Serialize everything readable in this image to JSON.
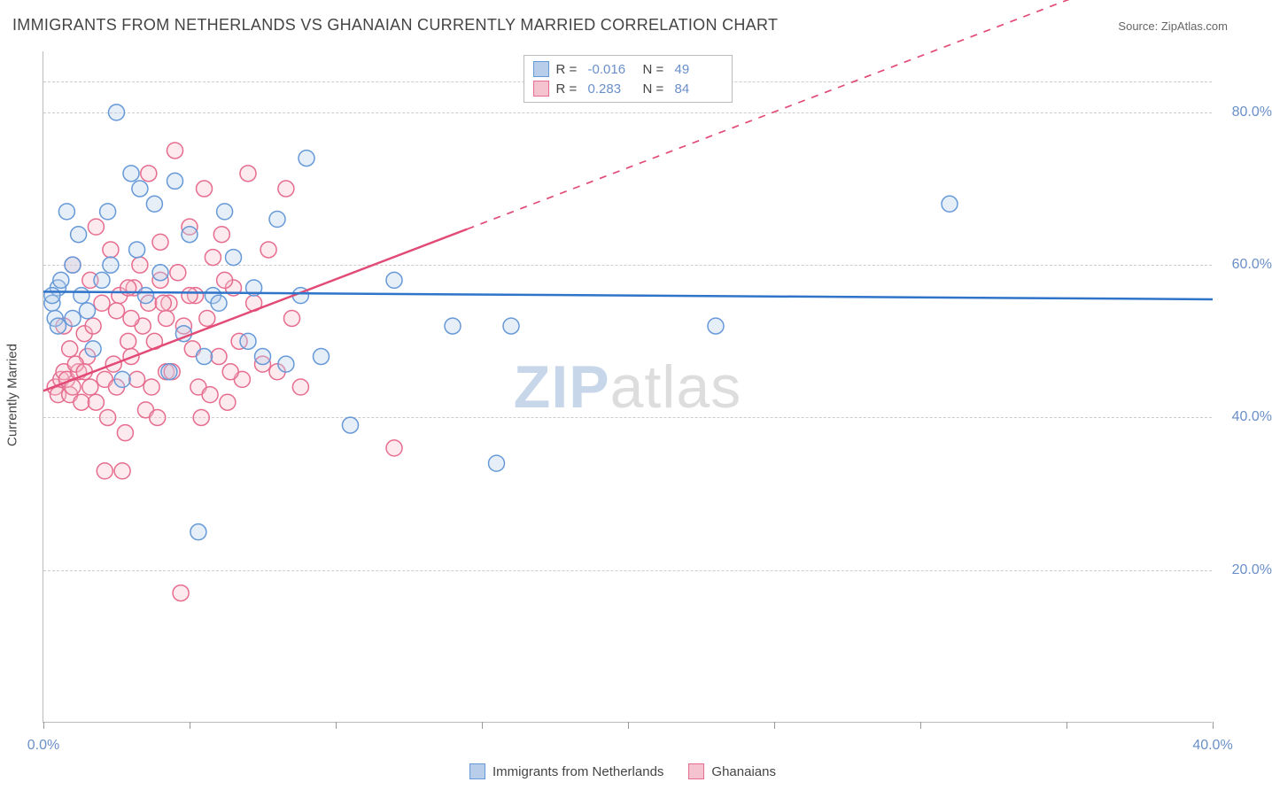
{
  "title": "IMMIGRANTS FROM NETHERLANDS VS GHANAIAN CURRENTLY MARRIED CORRELATION CHART",
  "source_label": "Source:",
  "source_value": "ZipAtlas.com",
  "yaxis_label": "Currently Married",
  "watermark_zip": "ZIP",
  "watermark_atlas": "atlas",
  "chart": {
    "type": "scatter",
    "background_color": "#ffffff",
    "grid_color": "#cccccc",
    "axis_color": "#bbbbbb",
    "tick_label_color": "#6a8fc9",
    "xlim": [
      0,
      40
    ],
    "ylim": [
      0,
      88
    ],
    "ytick_values": [
      20,
      40,
      60,
      80
    ],
    "ytick_labels": [
      "20.0%",
      "40.0%",
      "60.0%",
      "80.0%"
    ],
    "xtick_values": [
      0,
      5,
      10,
      15,
      20,
      25,
      30,
      35,
      40
    ],
    "xtick_labels_shown": {
      "0": "0.0%",
      "40": "40.0%"
    },
    "marker_radius": 9,
    "marker_stroke_width": 1.5,
    "marker_fill_opacity": 0.35,
    "series_a": {
      "name": "Immigrants from Netherlands",
      "color_fill": "#b8cde9",
      "color_stroke": "#6699d8",
      "R_label": "R =",
      "R_value": "-0.016",
      "N_label": "N =",
      "N_value": "49",
      "regression": {
        "x1": 0,
        "y1": 56.5,
        "x2": 40,
        "y2": 55.5,
        "solid_until_x": 40,
        "line_color": "#2f74c9",
        "line_width": 2.5
      },
      "points": [
        [
          0.3,
          55
        ],
        [
          0.5,
          57
        ],
        [
          0.4,
          53
        ],
        [
          0.6,
          58
        ],
        [
          0.8,
          67
        ],
        [
          0.5,
          52
        ],
        [
          1.0,
          60
        ],
        [
          1.2,
          64
        ],
        [
          1.5,
          54
        ],
        [
          1.7,
          49
        ],
        [
          2.0,
          58
        ],
        [
          2.2,
          67
        ],
        [
          2.5,
          80
        ],
        [
          2.7,
          45
        ],
        [
          3.0,
          72
        ],
        [
          3.2,
          62
        ],
        [
          3.5,
          56
        ],
        [
          3.8,
          68
        ],
        [
          4.0,
          59
        ],
        [
          4.3,
          46
        ],
        [
          4.5,
          71
        ],
        [
          5.0,
          64
        ],
        [
          5.3,
          25
        ],
        [
          5.5,
          48
        ],
        [
          5.8,
          56
        ],
        [
          6.2,
          67
        ],
        [
          6.5,
          61
        ],
        [
          7.0,
          50
        ],
        [
          7.2,
          57
        ],
        [
          7.5,
          48
        ],
        [
          8.0,
          66
        ],
        [
          8.3,
          47
        ],
        [
          8.8,
          56
        ],
        [
          9.0,
          74
        ],
        [
          9.5,
          48
        ],
        [
          10.5,
          39
        ],
        [
          12.0,
          58
        ],
        [
          14.0,
          52
        ],
        [
          15.5,
          34
        ],
        [
          16.0,
          52
        ],
        [
          23.0,
          52
        ],
        [
          31.0,
          68
        ],
        [
          1.0,
          53
        ],
        [
          1.3,
          56
        ],
        [
          2.3,
          60
        ],
        [
          3.3,
          70
        ],
        [
          4.8,
          51
        ],
        [
          6.0,
          55
        ],
        [
          0.3,
          56
        ]
      ]
    },
    "series_b": {
      "name": "Ghanaians",
      "color_fill": "#f5c3cf",
      "color_stroke": "#e66d8f",
      "R_label": "R =",
      "R_value": "0.283",
      "N_label": "N =",
      "N_value": "84",
      "regression": {
        "x1": 0,
        "y1": 43.5,
        "x2": 40,
        "y2": 102,
        "solid_until_x": 14.5,
        "line_color": "#e14b76",
        "line_width": 2.5
      },
      "points": [
        [
          0.4,
          44
        ],
        [
          0.6,
          45
        ],
        [
          0.5,
          43
        ],
        [
          0.7,
          46
        ],
        [
          0.8,
          45
        ],
        [
          0.9,
          43
        ],
        [
          1.0,
          44
        ],
        [
          1.0,
          60
        ],
        [
          1.2,
          46
        ],
        [
          1.3,
          42
        ],
        [
          1.4,
          51
        ],
        [
          1.5,
          48
        ],
        [
          1.6,
          44
        ],
        [
          1.7,
          52
        ],
        [
          1.8,
          42
        ],
        [
          2.0,
          55
        ],
        [
          2.1,
          45
        ],
        [
          2.2,
          40
        ],
        [
          2.3,
          62
        ],
        [
          2.4,
          47
        ],
        [
          2.5,
          44
        ],
        [
          2.6,
          56
        ],
        [
          2.7,
          33
        ],
        [
          2.8,
          38
        ],
        [
          2.9,
          50
        ],
        [
          3.0,
          48
        ],
        [
          3.1,
          57
        ],
        [
          3.2,
          45
        ],
        [
          3.3,
          60
        ],
        [
          3.4,
          52
        ],
        [
          3.5,
          41
        ],
        [
          3.6,
          72
        ],
        [
          3.7,
          44
        ],
        [
          3.8,
          50
        ],
        [
          4.0,
          63
        ],
        [
          4.0,
          58
        ],
        [
          4.2,
          46
        ],
        [
          4.3,
          55
        ],
        [
          4.5,
          75
        ],
        [
          4.6,
          59
        ],
        [
          4.7,
          17
        ],
        [
          4.8,
          52
        ],
        [
          5.0,
          65
        ],
        [
          5.1,
          49
        ],
        [
          5.2,
          56
        ],
        [
          5.3,
          44
        ],
        [
          5.5,
          70
        ],
        [
          5.6,
          53
        ],
        [
          5.8,
          61
        ],
        [
          6.0,
          48
        ],
        [
          6.1,
          64
        ],
        [
          6.3,
          42
        ],
        [
          6.5,
          57
        ],
        [
          6.7,
          50
        ],
        [
          6.8,
          45
        ],
        [
          7.0,
          72
        ],
        [
          7.2,
          55
        ],
        [
          7.5,
          47
        ],
        [
          7.7,
          62
        ],
        [
          8.0,
          46
        ],
        [
          8.3,
          70
        ],
        [
          8.5,
          53
        ],
        [
          8.8,
          44
        ],
        [
          2.1,
          33
        ],
        [
          4.4,
          46
        ],
        [
          3.9,
          40
        ],
        [
          5.4,
          40
        ],
        [
          1.1,
          47
        ],
        [
          1.4,
          46
        ],
        [
          0.9,
          49
        ],
        [
          2.5,
          54
        ],
        [
          3.0,
          53
        ],
        [
          0.7,
          52
        ],
        [
          1.6,
          58
        ],
        [
          2.9,
          57
        ],
        [
          3.6,
          55
        ],
        [
          4.2,
          53
        ],
        [
          6.2,
          58
        ],
        [
          5.7,
          43
        ],
        [
          6.4,
          46
        ],
        [
          4.1,
          55
        ],
        [
          12.0,
          36
        ],
        [
          1.8,
          65
        ],
        [
          5.0,
          56
        ]
      ]
    }
  },
  "legend_bottom": {
    "a_label": "Immigrants from Netherlands",
    "b_label": "Ghanaians"
  }
}
